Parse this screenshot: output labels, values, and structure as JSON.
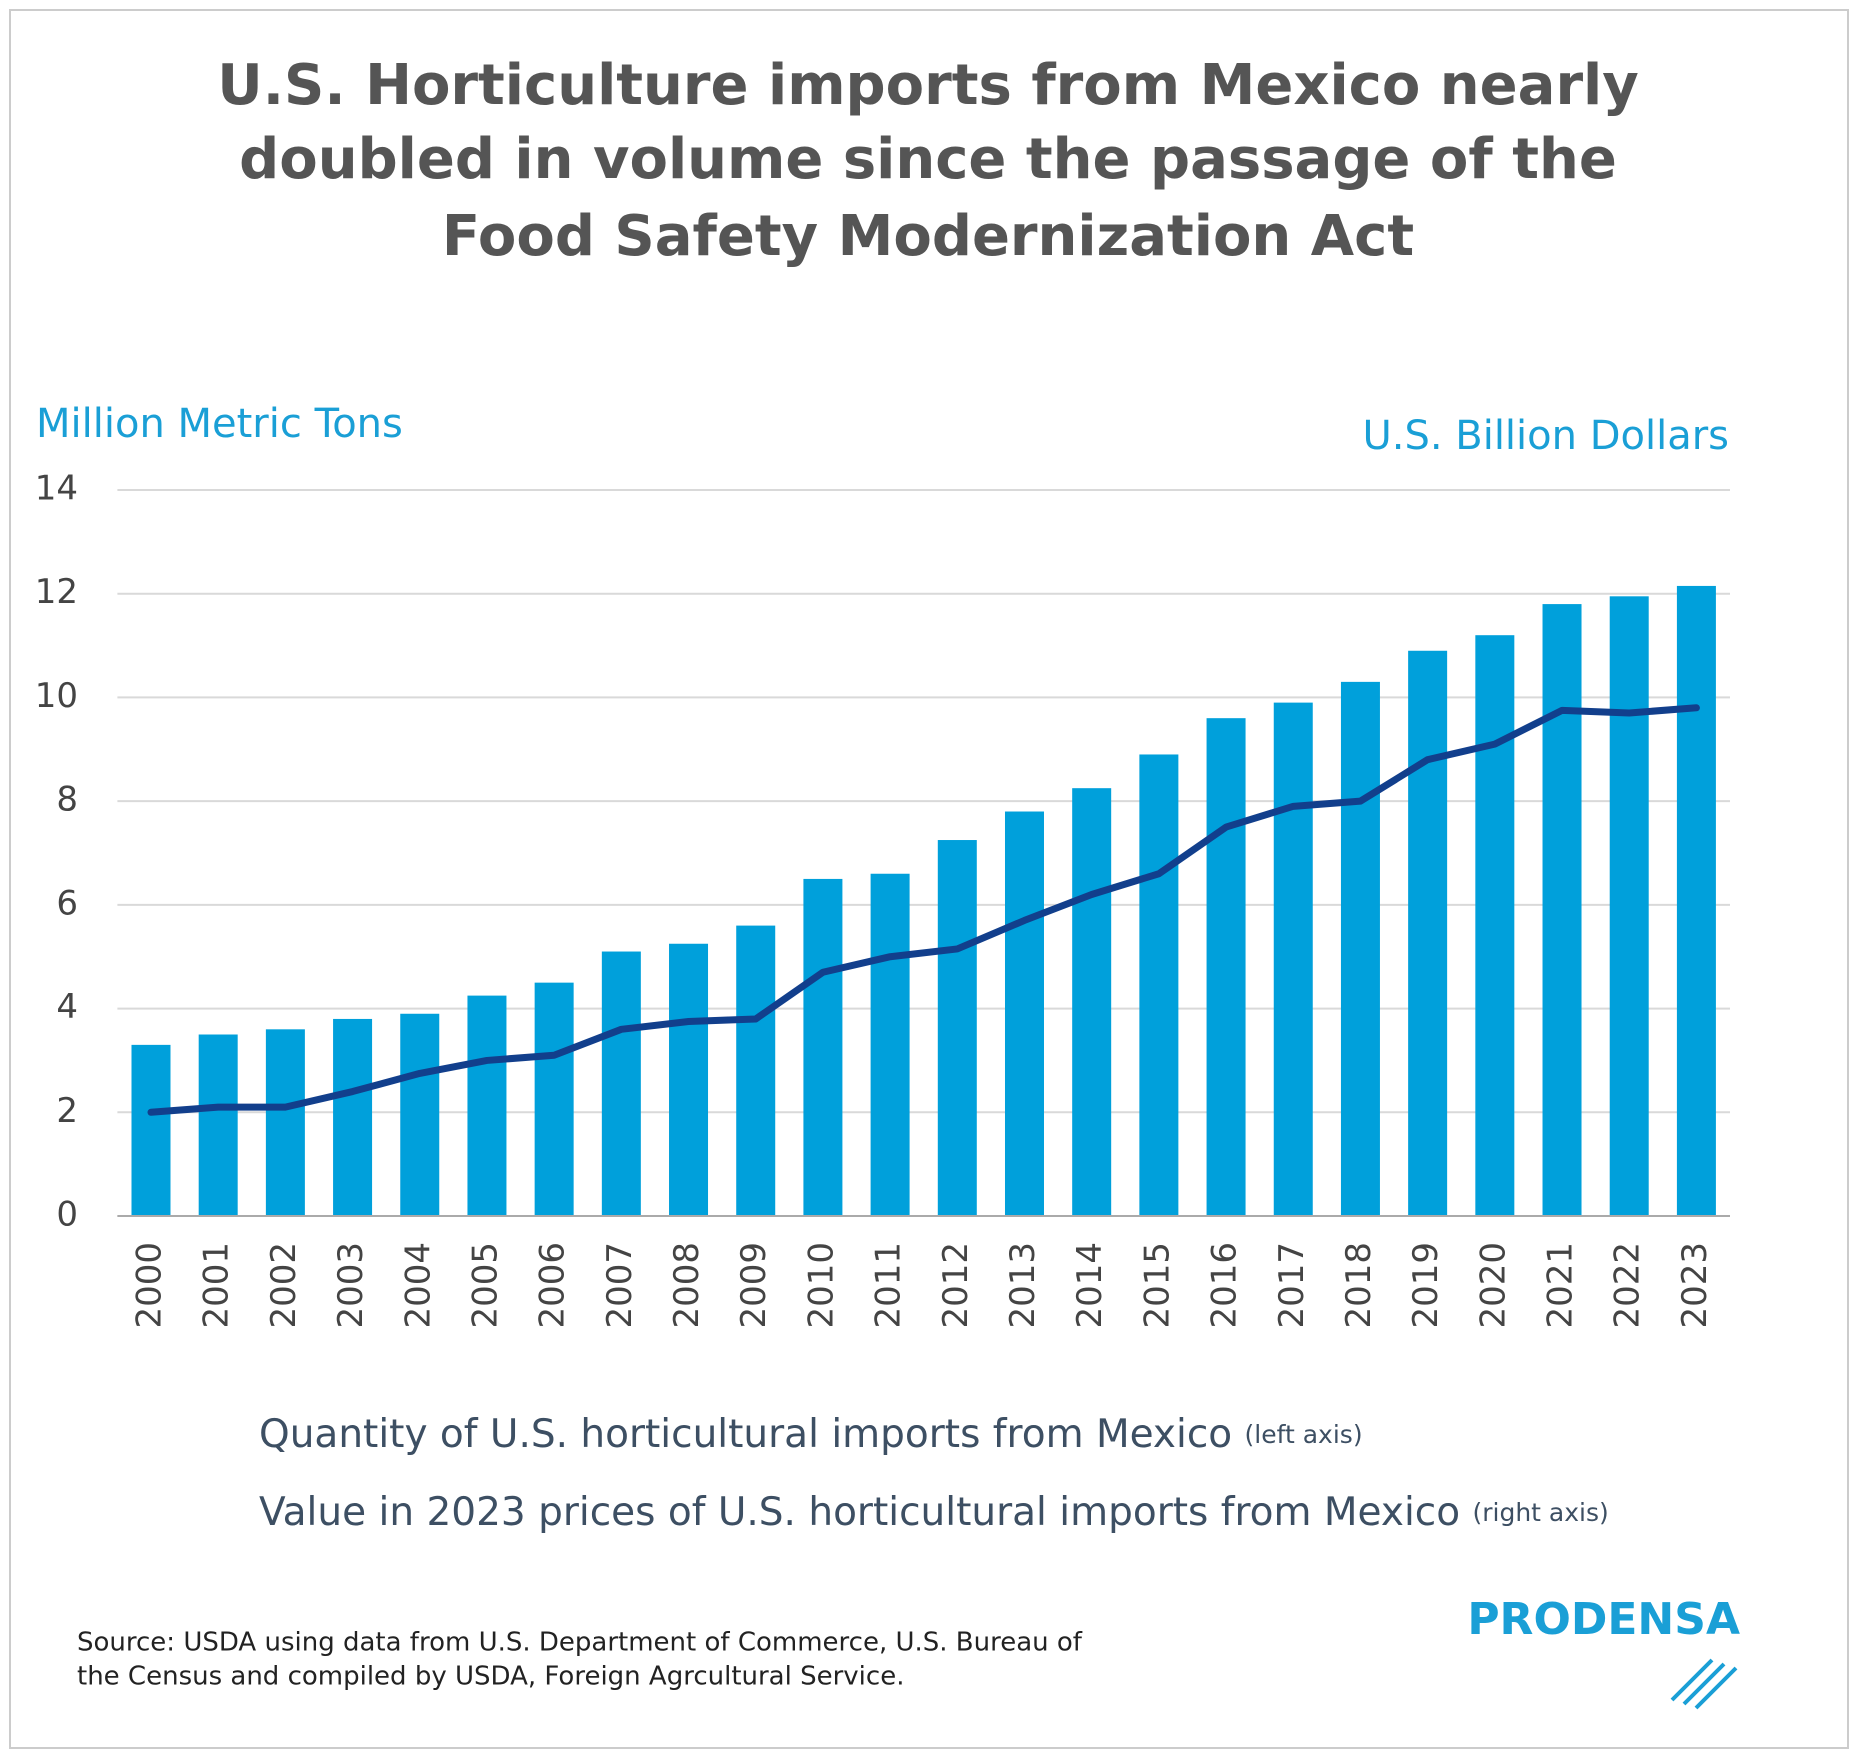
{
  "chart_data": {
    "type": "bar_line",
    "title": [
      "U.S. Horticulture imports from Mexico nearly",
      "doubled in volume since the passage of the",
      "Food Safety Modernization Act"
    ],
    "y_label": "Million Metric Tons",
    "y2_label": "U.S. Billion Dollars",
    "categories": [
      "2000",
      "2001",
      "2002",
      "2003",
      "2004",
      "2005",
      "2006",
      "2007",
      "2008",
      "2009",
      "2010",
      "2011",
      "2012",
      "2013",
      "2014",
      "2015",
      "2016",
      "2017",
      "2018",
      "2019",
      "2020",
      "2021",
      "2022",
      "2023"
    ],
    "series": [
      {
        "name": "Quantity of U.S. horticultural imports from Mexico",
        "axis_note": "(left axis)",
        "type": "bar",
        "color": "#00a0db",
        "values": [
          3.3,
          3.5,
          3.6,
          3.8,
          3.9,
          4.25,
          4.5,
          5.1,
          5.25,
          5.6,
          6.5,
          6.6,
          7.25,
          7.8,
          8.25,
          8.9,
          9.6,
          9.9,
          10.3,
          10.9,
          11.2,
          11.8,
          11.95,
          12.15
        ]
      },
      {
        "name": "Value in 2023 prices of U.S. horticultural imports from Mexico",
        "axis_note": "(right axis)",
        "type": "line",
        "axis": "y2",
        "color": "#123f8c",
        "values": [
          2.0,
          2.1,
          2.1,
          2.4,
          2.75,
          3.0,
          3.1,
          3.6,
          3.75,
          3.8,
          4.7,
          5.0,
          5.15,
          5.7,
          6.2,
          6.6,
          7.5,
          7.9,
          8.0,
          8.8,
          9.1,
          9.75,
          9.7,
          9.8
        ]
      }
    ],
    "ylim": [
      0,
      14
    ],
    "yticks": [
      0,
      2,
      4,
      6,
      8,
      10,
      12,
      14
    ],
    "y2lim": [
      0,
      14
    ],
    "grid": true,
    "source": [
      "Source: USDA using data from U.S. Department of Commerce, U.S. Bureau of",
      "the Census and compiled by USDA, Foreign Agrcultural Service."
    ],
    "logo": "PRODENSA"
  }
}
